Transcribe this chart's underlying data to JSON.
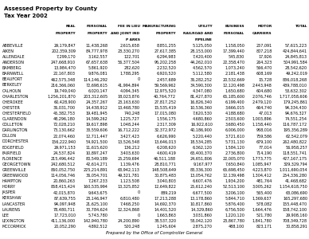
{
  "title_line1": "Assessed Property by County",
  "title_line2": "Tax Year 2002",
  "col_headers": [
    [
      "",
      "REAL",
      "PERSONAL",
      "FEE IN LIEU",
      "MANUFACTURING",
      "UTILITY",
      "BUSINESS",
      "MOTOR",
      "TOTAL"
    ],
    [
      "",
      "PROPERTY",
      "PROPERTY",
      "AND JOINT IND",
      "PROPERTY",
      "RAILROAD AND",
      "PERSONAL",
      "CARRIERS",
      ""
    ],
    [
      "",
      "",
      "",
      "P ARKS",
      "",
      "PIPELINE",
      "",
      "",
      ""
    ]
  ],
  "rows": [
    [
      "ABBEVILLE",
      "29,179,847",
      "11,438,268",
      "2,615,658",
      "8,851,255",
      "5,125,050",
      "1,158,050",
      "257,091",
      "57,615,223"
    ],
    [
      "AIKEN",
      "202,359,309",
      "84,777,978",
      "23,330,270",
      "27,617,385",
      "28,153,000",
      "17,399,440",
      "807,218",
      "424,844,641"
    ],
    [
      "ALLENDALE",
      "7,299,170",
      "3,162,557",
      "122,701",
      "6,294,983",
      "7,420,400",
      "545,830",
      "17,926",
      "24,845,813"
    ],
    [
      "ANDERSON",
      "247,668,910",
      "67,657,638",
      "56,377,504",
      "96,202,258",
      "44,262,010",
      "22,358,470",
      "264,323",
      "504,991,584"
    ],
    [
      "BAMBERG",
      "13,984,470",
      "5,861,920",
      "282,620",
      "2,232,520",
      "4,562,570",
      "1,073,240",
      "566,470",
      "28,542,620"
    ],
    [
      "BARNWELL",
      "22,167,803",
      "9,876,081",
      "1,788,295",
      "6,920,520",
      "5,112,580",
      "2,181,438",
      "608,169",
      "49,242,019"
    ],
    [
      "BEAUFORT",
      "462,575,348",
      "114,146,292",
      "0",
      "2,457,689",
      "36,282,252",
      "20,532,669",
      "15,728",
      "836,018,268"
    ],
    [
      "BERKELEY",
      "216,366,060",
      "72,698,615",
      "41,994,894",
      "59,569,962",
      "34,590,300",
      "12,120,498",
      "2,443,948",
      "439,788,010"
    ],
    [
      "CALHOUN",
      "19,749,040",
      "6,020,147",
      "4,094,345",
      "12,975,520",
      "4,347,080",
      "1,650,680",
      "604,680",
      "53,632,302"
    ],
    [
      "CHARLESTON",
      "1,256,201,870",
      "203,312,605",
      "18,023,876",
      "40,764,772",
      "81,427,870",
      "65,185,600",
      "2,076,746",
      "1,717,058,606"
    ],
    [
      "CHEROKEE",
      "60,428,900",
      "24,357,267",
      "23,163,630",
      "27,817,252",
      "16,826,340",
      "6,199,400",
      "2,479,120",
      "179,245,861"
    ],
    [
      "CHESTER",
      "36,031,700",
      "14,438,912",
      "13,468,780",
      "15,535,419",
      "10,536,360",
      "3,666,015",
      "664,740",
      "94,334,430"
    ],
    [
      "CHESTERFIELD",
      "45,382,753",
      "19,481,945",
      "740,248",
      "17,015,080",
      "7,620,530",
      "4,188,680",
      "47,013",
      "94,676,327"
    ],
    [
      "CLARENDON",
      "48,296,180",
      "14,599,262",
      "1,225,727",
      "1,556,175",
      "4,680,860",
      "2,503,600",
      "1,003,896",
      "74,551,254"
    ],
    [
      "COLLETON",
      "72,028,210",
      "19,617,898",
      "1,048,244",
      "2,317,309",
      "16,922,610",
      "3,680,450",
      "1,158,440",
      "116,787,172"
    ],
    [
      "DARLINGTON",
      "73,130,662",
      "33,559,606",
      "16,712,222",
      "32,372,972",
      "40,186,900",
      "6,006,000",
      "968,016",
      "195,356,289"
    ],
    [
      "DILLON",
      "22,074,460",
      "12,711,447",
      "3,427,423",
      "6,626,990",
      "5,220,440",
      "3,721,610",
      "759,586",
      "62,542,079"
    ],
    [
      "DORCHESTER",
      "156,222,940",
      "54,921,500",
      "13,526,548",
      "13,646,013",
      "18,534,285",
      "5,731,130",
      "679,100",
      "262,480,822"
    ],
    [
      "EDGEFIELD",
      "29,971,153",
      "11,615,620",
      "136,212",
      "6,208,620",
      "6,362,120",
      "1,584,120",
      "77,014",
      "56,958,257"
    ],
    [
      "FAIRFIELD",
      "24,537,824",
      "10,897,247",
      "3,403,630",
      "4,600,419",
      "63,400,370",
      "2,736,800",
      "714,190",
      "118,551,741"
    ],
    [
      "FLORENCE",
      "215,496,442",
      "80,549,189",
      "25,259,694",
      "46,511,188",
      "24,651,806",
      "22,005,070",
      "1,773,775",
      "427,167,175"
    ],
    [
      "GEORGETOWN",
      "242,680,512",
      "42,614,271",
      "1,139,476",
      "28,810,771",
      "9,167,977",
      "7,650,840",
      "1,085,947",
      "329,329,794"
    ],
    [
      "GREENVILLE",
      "860,052,750",
      "225,214,891",
      "63,942,113",
      "148,508,649",
      "83,336,300",
      "65,698,450",
      "4,223,870",
      "1,011,690,054"
    ],
    [
      "GREENWOOD",
      "114,056,746",
      "36,054,701",
      "49,321,781",
      "30,875,483",
      "13,054,762",
      "12,139,498",
      "1,304,412",
      "254,336,280"
    ],
    [
      "HAMPTON",
      "20,860,263",
      "7,267,233",
      "1,123,508",
      "3,040,803",
      "6,607,476",
      "1,934,200",
      "481,764",
      "41,468,682"
    ],
    [
      "HORRY",
      "858,415,424",
      "160,535,994",
      "13,325,852",
      "12,649,822",
      "25,612,240",
      "52,513,100",
      "3,005,262",
      "1,154,618,750"
    ],
    [
      "JASPER",
      "42,015,870",
      "9,643,675",
      "0",
      "889,219",
      "6,677,500",
      "3,206,100",
      "565,400",
      "63,086,690"
    ],
    [
      "KERSHAW",
      "87,639,755",
      "23,146,947",
      "6,810,480",
      "17,213,288",
      "13,178,860",
      "5,844,710",
      "1,369,637",
      "165,297,680"
    ],
    [
      "LANCASTER",
      "94,097,948",
      "21,625,100",
      "7,468,250",
      "14,692,370",
      "10,817,860",
      "5,876,400",
      "578,082",
      "155,448,470"
    ],
    [
      "LAURENS",
      "78,480,711",
      "30,784,624",
      "12,324,868",
      "14,401,520",
      "14,329,860",
      "6,756,500",
      "1,664,476",
      "158,742,100"
    ],
    [
      "LEE",
      "17,723,010",
      "5,743,780",
      "0",
      "1,663,863",
      "3,031,860",
      "1,220,120",
      "521,780",
      "29,908,160"
    ],
    [
      "LEXINGTON",
      "411,136,000",
      "142,940,780",
      "24,200,890",
      "38,537,320",
      "58,042,120",
      "23,867,780",
      "1,841,780",
      "708,349,728"
    ],
    [
      "MCCORMICK",
      "20,052,290",
      "4,892,512",
      "520,248",
      "1,245,604",
      "2,875,270",
      "488,100",
      "823,171",
      "30,858,291"
    ]
  ],
  "footer": "Prepared by the Office of Comptroller General",
  "bg_color": "#ffffff",
  "text_color": "#000000",
  "title_fontsize": 5.0,
  "header_fontsize": 3.2,
  "data_fontsize": 3.5
}
